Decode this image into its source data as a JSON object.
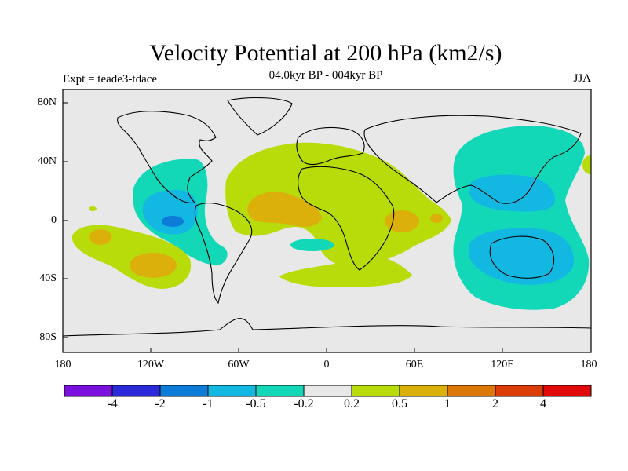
{
  "title": "Velocity Potential at 200 hPa (km2/s)",
  "subtitle": "04.0kyr BP - 004kyr BP",
  "experiment": "Expt = teade3-tdace",
  "season": "JJA",
  "lat_labels": [
    "80N",
    "40N",
    "0",
    "40S",
    "80S"
  ],
  "lon_labels": [
    "180",
    "120W",
    "60W",
    "0",
    "60E",
    "120E",
    "180"
  ],
  "colorbar": {
    "colors": [
      "#7a10dc",
      "#2a2ad8",
      "#0c7cd8",
      "#12b8e2",
      "#12d8b8",
      "#e8e8e8",
      "#b8dc0a",
      "#dcb00a",
      "#dc7808",
      "#dc3c08",
      "#e00a0a"
    ],
    "labels": [
      "-4",
      "-2",
      "-1",
      "-0.5",
      "-0.2",
      "0.2",
      "0.5",
      "1",
      "2",
      "4"
    ]
  },
  "map_colors": {
    "ocean": "#e8e8e8",
    "neg_light": "#12d8b8",
    "neg_mid": "#12b8e2",
    "neg_strong": "#0c7cd8",
    "pos_light": "#b8dc0a",
    "pos_mid": "#dcb00a",
    "coast": "#000000"
  }
}
